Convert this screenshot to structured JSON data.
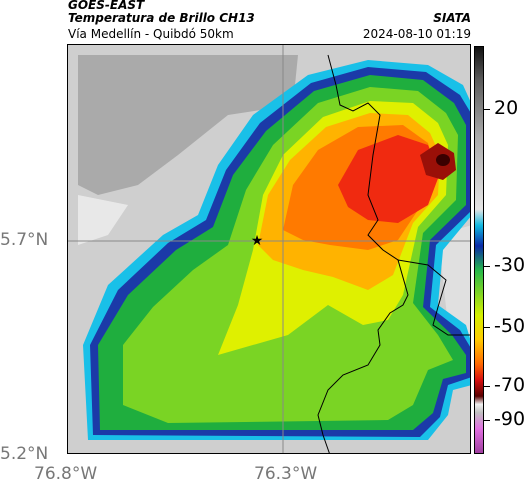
{
  "header": {
    "satellite": "GOES-EAST",
    "product": "Temperatura de Brillo CH13",
    "source": "SIATA",
    "region": "Vía Medellín - Quibdó 50km",
    "timestamp": "2024-08-10 01:19"
  },
  "axes": {
    "lat_labels": [
      "5.7°N",
      "5.2°N"
    ],
    "lon_labels": [
      "76.8°W",
      "76.3°W"
    ]
  },
  "colorbar": {
    "labels": [
      "20",
      "-30",
      "-50",
      "-70",
      "-90"
    ],
    "colors": {
      "warm_gray": "#aaaaaa",
      "cyan": "#0fb8e0",
      "blue": "#0a2aa8",
      "green": "#26b84a",
      "yellow": "#d4f000",
      "orange": "#ff6a00",
      "red": "#d81010",
      "dark_red": "#5a0000",
      "magenta": "#a040a0"
    }
  },
  "map": {
    "marker": "star-icon",
    "marker_symbol": "★"
  }
}
